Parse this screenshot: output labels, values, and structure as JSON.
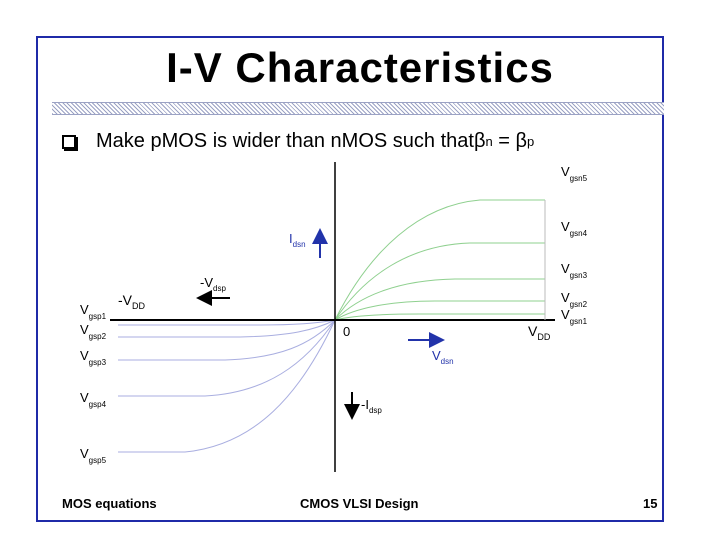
{
  "slide": {
    "title": "I-V Characteristics",
    "bullet": {
      "text": "Make pMOS is wider than nMOS such that ",
      "beta": "β",
      "sub_n": "n",
      "equals": " = ",
      "sub_p": "p"
    }
  },
  "diagram": {
    "origin_label": "0",
    "vdd_pos": {
      "base": "V",
      "sub": "DD"
    },
    "vdd_neg": {
      "base": "-V",
      "sub": "DD"
    },
    "idsn": {
      "base": "I",
      "sub": "dsn"
    },
    "vdsn": {
      "base": "V",
      "sub": "dsn"
    },
    "vdsp": {
      "base": "-V",
      "sub": "dsp"
    },
    "idsp": {
      "base": "-I",
      "sub": "dsp"
    },
    "nmos_curves": [
      {
        "base": "V",
        "sub": "gsn5"
      },
      {
        "base": "V",
        "sub": "gsn4"
      },
      {
        "base": "V",
        "sub": "gsn3"
      },
      {
        "base": "V",
        "sub": "gsn2"
      },
      {
        "base": "V",
        "sub": "gsn1"
      }
    ],
    "pmos_curves": [
      {
        "base": "V",
        "sub": "gsp1"
      },
      {
        "base": "V",
        "sub": "gsp2"
      },
      {
        "base": "V",
        "sub": "gsp3"
      },
      {
        "base": "V",
        "sub": "gsp4"
      },
      {
        "base": "V",
        "sub": "gsp5"
      }
    ],
    "colors": {
      "nmos": "#8fd08f",
      "pmos": "#a9aee0",
      "axis": "#000000",
      "arrow_n": "#2233aa",
      "arrow_p": "#000000"
    }
  },
  "footer": {
    "left": "MOS equations",
    "center": "CMOS VLSI Design",
    "right": "15"
  }
}
